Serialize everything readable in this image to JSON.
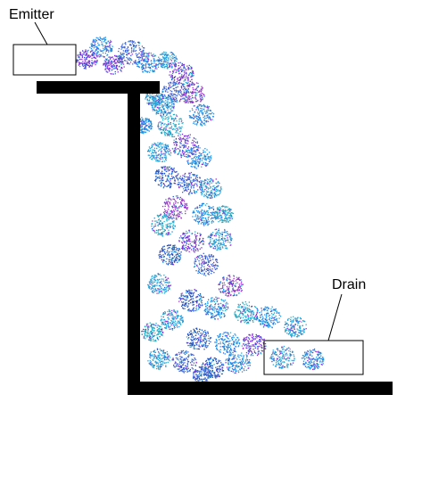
{
  "labels": {
    "emitter": "Emitter",
    "drain": "Drain"
  },
  "colors": {
    "structure": "#000000",
    "box_fill": "#ffffff",
    "box_stroke": "#000000",
    "particle_palette": [
      "#1e90e8",
      "#2aa6d8",
      "#3b5fd0",
      "#7a2fd0",
      "#9b30c8",
      "#22b0c8",
      "#2050c0"
    ]
  }
}
